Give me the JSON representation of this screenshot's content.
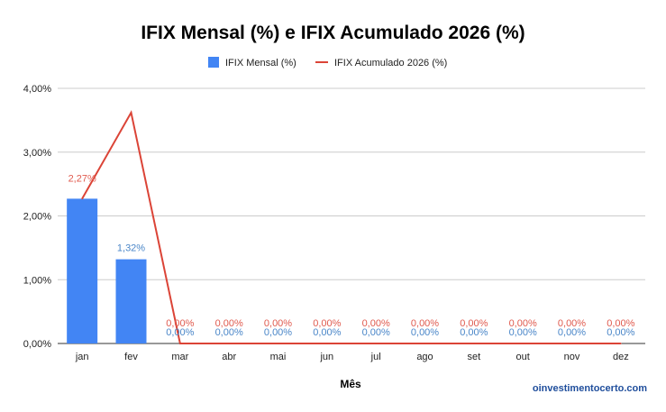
{
  "chart_data": {
    "type": "bar",
    "title": "IFIX Mensal (%) e IFIX Acumulado 2026 (%)",
    "xlabel": "Mês",
    "ylabel": "",
    "categories": [
      "jan",
      "fev",
      "mar",
      "abr",
      "mai",
      "jun",
      "jul",
      "ago",
      "set",
      "out",
      "nov",
      "dez"
    ],
    "ylim": [
      0,
      4
    ],
    "yticks": [
      "0,00%",
      "1,00%",
      "2,00%",
      "3,00%",
      "4,00%"
    ],
    "grid": true,
    "legend_position": "top",
    "series": [
      {
        "name": "IFIX Mensal (%)",
        "type": "bar",
        "color": "#4285f4",
        "values": [
          2.27,
          1.32,
          0,
          0,
          0,
          0,
          0,
          0,
          0,
          0,
          0,
          0
        ],
        "labels": [
          "",
          "1,32%",
          "0,00%",
          "0,00%",
          "0,00%",
          "0,00%",
          "0,00%",
          "0,00%",
          "0,00%",
          "0,00%",
          "0,00%",
          "0,00%"
        ]
      },
      {
        "name": "IFIX Acumulado 2026 (%)",
        "type": "line",
        "color": "#db4437",
        "values": [
          2.27,
          3.62,
          0,
          0,
          0,
          0,
          0,
          0,
          0,
          0,
          0,
          0
        ],
        "labels": [
          "2,27%",
          "",
          "0,00%",
          "0,00%",
          "0,00%",
          "0,00%",
          "0,00%",
          "0,00%",
          "0,00%",
          "0,00%",
          "0,00%",
          "0,00%"
        ]
      }
    ]
  },
  "watermark": "oinvestimentocerto.com"
}
